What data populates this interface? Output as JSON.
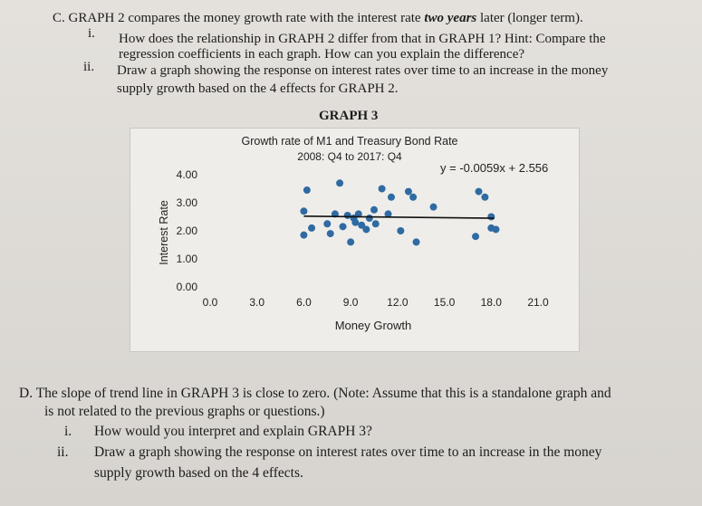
{
  "section_c": {
    "lead": "C.",
    "header_pre": "GRAPH 2 compares the money growth rate with the interest rate ",
    "header_em": "two years",
    "header_post": " later (longer term).",
    "item_i_num": "i.",
    "item_i_line1": "How does the relationship in GRAPH 2 differ from that in GRAPH 1? Hint: Compare the",
    "item_i_line2": "regression coefficients in each graph. How can you explain the difference?",
    "item_ii_num": "ii.",
    "item_ii_line1": "Draw a graph showing the response on interest rates over time to an increase in the money",
    "item_ii_line2": "supply growth based on the 4 effects for GRAPH 2."
  },
  "graph_heading": "GRAPH 3",
  "chart_data": {
    "type": "scatter",
    "title": "Growth rate of M1 and Treasury Bond Rate",
    "subtitle": "2008: Q4 to 2017: Q4",
    "xlabel": "Money Growth",
    "ylabel": "Interest Rate",
    "xlim": [
      0,
      21
    ],
    "ylim": [
      0,
      4
    ],
    "x_ticks": [
      "0.0",
      "3.0",
      "6.0",
      "9.0",
      "12.0",
      "15.0",
      "18.0",
      "21.0"
    ],
    "y_ticks": [
      "0.00",
      "1.00",
      "2.00",
      "3.00",
      "4.00"
    ],
    "trendline_label": "y = -0.0059x + 2.556",
    "trendline": {
      "slope": -0.0059,
      "intercept": 2.556,
      "x_range": [
        6.0,
        18.2
      ]
    },
    "colors": {
      "points": "#2f6aa3",
      "trendline": "#111111"
    },
    "points": [
      {
        "x": 6.2,
        "y": 3.45
      },
      {
        "x": 6.0,
        "y": 2.7
      },
      {
        "x": 6.0,
        "y": 1.85
      },
      {
        "x": 6.5,
        "y": 2.1
      },
      {
        "x": 7.5,
        "y": 2.25
      },
      {
        "x": 7.7,
        "y": 1.9
      },
      {
        "x": 8.0,
        "y": 2.6
      },
      {
        "x": 8.3,
        "y": 3.7
      },
      {
        "x": 8.5,
        "y": 2.15
      },
      {
        "x": 8.8,
        "y": 2.55
      },
      {
        "x": 9.0,
        "y": 1.6
      },
      {
        "x": 9.2,
        "y": 2.45
      },
      {
        "x": 9.3,
        "y": 2.3
      },
      {
        "x": 9.5,
        "y": 2.6
      },
      {
        "x": 9.7,
        "y": 2.2
      },
      {
        "x": 10.0,
        "y": 2.05
      },
      {
        "x": 10.2,
        "y": 2.45
      },
      {
        "x": 10.5,
        "y": 2.75
      },
      {
        "x": 10.6,
        "y": 2.25
      },
      {
        "x": 11.0,
        "y": 3.5
      },
      {
        "x": 11.4,
        "y": 2.6
      },
      {
        "x": 11.6,
        "y": 3.2
      },
      {
        "x": 12.2,
        "y": 2.0
      },
      {
        "x": 12.7,
        "y": 3.4
      },
      {
        "x": 13.0,
        "y": 3.2
      },
      {
        "x": 13.2,
        "y": 1.6
      },
      {
        "x": 14.3,
        "y": 2.85
      },
      {
        "x": 17.0,
        "y": 1.8
      },
      {
        "x": 17.2,
        "y": 3.4
      },
      {
        "x": 17.6,
        "y": 3.2
      },
      {
        "x": 18.0,
        "y": 2.5
      },
      {
        "x": 18.0,
        "y": 2.1
      },
      {
        "x": 18.3,
        "y": 2.05
      }
    ]
  },
  "section_d": {
    "lead": "D.",
    "line1": "The slope of trend line in GRAPH 3 is close to zero. (Note: Assume that this is a standalone graph and",
    "line2": "is not related to the previous graphs or questions.)",
    "item_i_num": "i.",
    "item_i": "How would you interpret and explain GRAPH 3?",
    "item_ii_num": "ii.",
    "item_ii_line1": "Draw a graph showing the response on interest rates over time to an increase in the money",
    "item_ii_line2": "supply growth based on the 4 effects."
  }
}
